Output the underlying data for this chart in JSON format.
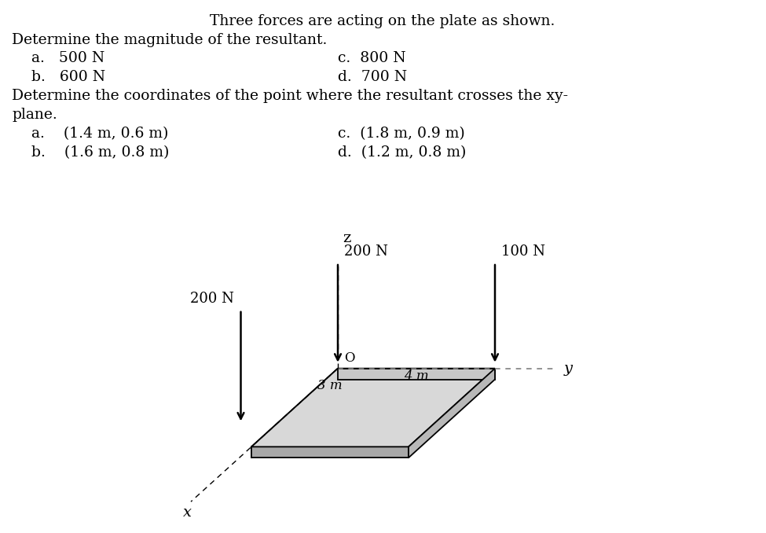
{
  "title": "Three forces are acting on the plate as shown.",
  "q1_label": "Determine the magnitude of the resultant.",
  "q1_options_left": [
    "a.   500 N",
    "b.   600 N"
  ],
  "q1_options_right": [
    "c.  800 N",
    "d.  700 N"
  ],
  "q2_label1": "Determine the coordinates of the point where the resultant crosses the xy-",
  "q2_label2": "plane.",
  "q2_options_left": [
    "a.    (1.4 m, 0.6 m)",
    "b.    (1.6 m, 0.8 m)"
  ],
  "q2_options_right": [
    "c.  (1.8 m, 0.9 m)",
    "d.  (1.2 m, 0.8 m)"
  ],
  "bg_color": "#ffffff",
  "text_color": "#000000",
  "plate_top_color": "#c8c8c8",
  "plate_face_color": "#d8d8d8",
  "plate_left_color": "#b8b8b8",
  "plate_bottom_color": "#a8a8a8",
  "force1_label": "200 N",
  "force2_label": "100 N",
  "force3_label": "200 N",
  "dim_y_label": "4 m",
  "dim_x_label": "3 m",
  "axis_label_x": "x",
  "axis_label_y": "y",
  "axis_label_z": "z"
}
